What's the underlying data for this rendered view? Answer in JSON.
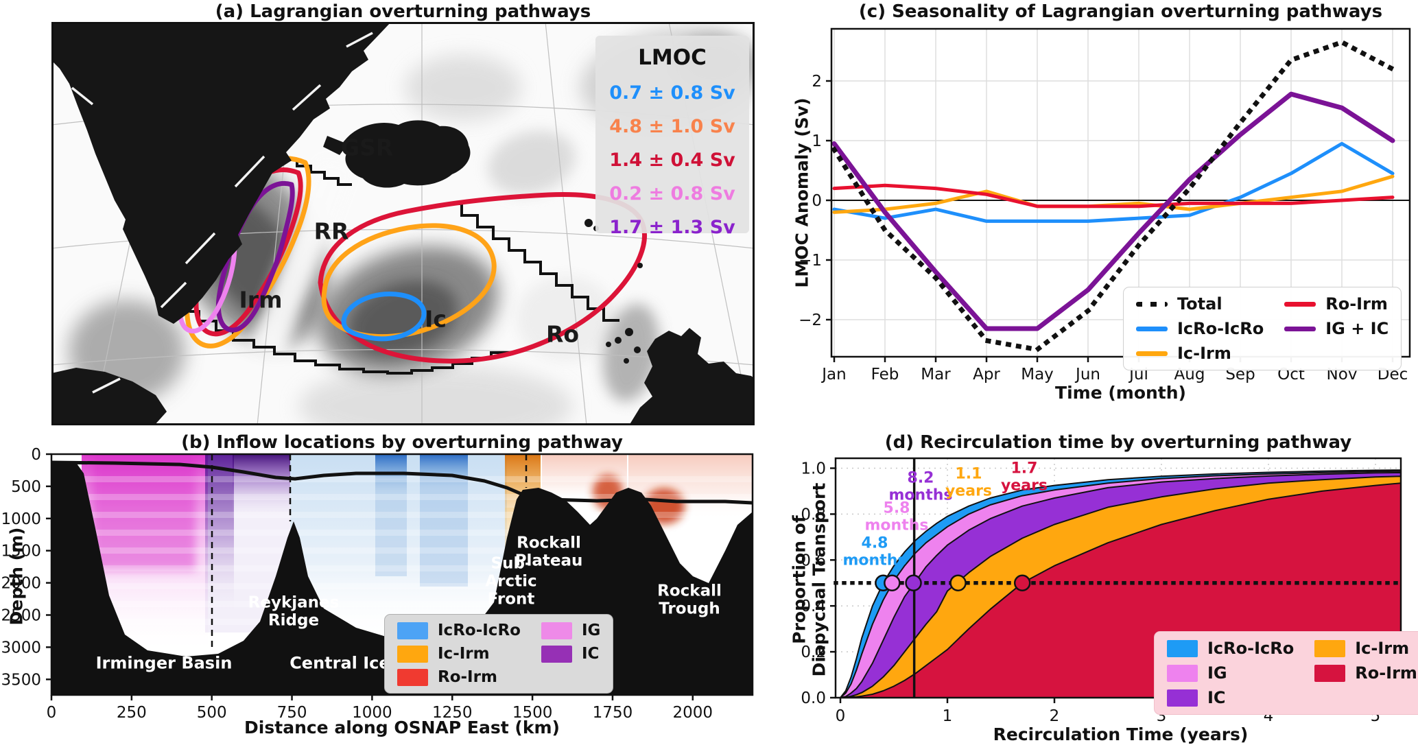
{
  "panel_a": {
    "title": "(a) Lagrangian overturning pathways",
    "legend": {
      "title": "LMOC",
      "entries": [
        {
          "pathway": "IcRo-IcRo",
          "label": "0.7 ± 0.8 Sv",
          "color": "#1e8ffb"
        },
        {
          "pathway": "Ic-Irm",
          "label": "4.8 ± 1.0 Sv",
          "color": "#f8824c"
        },
        {
          "pathway": "Ro-Irm",
          "label": "1.4 ± 0.4 Sv",
          "color": "#cf1137"
        },
        {
          "pathway": "IG",
          "label": "0.2 ± 0.8 Sv",
          "color": "#ee7ce0"
        },
        {
          "pathway": "IC",
          "label": "1.7 ± 1.3 Sv",
          "color": "#8a22cc"
        }
      ]
    },
    "map_labels": [
      {
        "text": "GSR"
      },
      {
        "text": "RR"
      },
      {
        "text": "Irm"
      },
      {
        "text": "Ic"
      },
      {
        "text": "Ro"
      }
    ]
  },
  "chart_data": [
    {
      "id": "b",
      "type": "heatmap",
      "title": "(b) Inflow locations by overturning pathway",
      "xlabel": "Distance along OSNAP East (km)",
      "ylabel": "Depth (m)",
      "xlim": [
        0,
        2187
      ],
      "ylim": [
        3740,
        0
      ],
      "x_ticks": [
        0,
        250,
        500,
        750,
        1000,
        1250,
        1500,
        1750,
        2000
      ],
      "y_ticks": [
        0,
        500,
        1000,
        1500,
        2000,
        2500,
        3000,
        3500
      ],
      "region_labels": [
        {
          "text": "Irminger Basin"
        },
        {
          "text": "Central Iceland Basin"
        },
        {
          "text": "Reykjanes\nRidge"
        },
        {
          "text": "Sub-\nArctic\nFront"
        },
        {
          "text": "Rockall\nPlateau"
        },
        {
          "text": "Rockall\nTrough"
        }
      ],
      "legend": [
        {
          "label": "IcRo-IcRo",
          "color": "#4da3f5"
        },
        {
          "label": "Ic-Irm",
          "color": "#ffa70f"
        },
        {
          "label": "Ro-Irm",
          "color": "#f03a30"
        },
        {
          "label": "IG",
          "color": "#ee8ae8"
        },
        {
          "label": "IC",
          "color": "#9630b5"
        }
      ],
      "notes": "Inflow concentration along OSNAP East by pathway (colored columns), black bathymetry, thick black overturning-isopycnal depth line, dashed separators near 500, 745 and 1480 km"
    },
    {
      "id": "c",
      "type": "line",
      "title": "(c) Seasonality of Lagrangian overturning pathways",
      "xlabel": "Time (month)",
      "ylabel": "LMOC Anomaly (Sv)",
      "categories": [
        "Jan",
        "Feb",
        "Mar",
        "Apr",
        "May",
        "Jun",
        "Jul",
        "Aug",
        "Sep",
        "Oct",
        "Nov",
        "Dec"
      ],
      "ylim": [
        -2.62,
        2.87
      ],
      "y_ticks": [
        {
          "v": -2,
          "label": "−2"
        },
        {
          "v": -1,
          "label": "−1"
        },
        {
          "v": 0,
          "label": "0"
        },
        {
          "v": 1,
          "label": "1"
        },
        {
          "v": 2,
          "label": "2"
        }
      ],
      "y_grid": [
        -2,
        -1,
        1,
        2
      ],
      "series": [
        {
          "name": "IcRo-IcRo",
          "color": "#1e8ffb",
          "width": 5,
          "values": [
            -0.15,
            -0.3,
            -0.15,
            -0.35,
            -0.35,
            -0.35,
            -0.3,
            -0.25,
            0.05,
            0.45,
            0.95,
            0.45
          ]
        },
        {
          "name": "Ic-Irm",
          "color": "#ffa70f",
          "width": 5,
          "values": [
            -0.2,
            -0.15,
            -0.05,
            0.15,
            -0.1,
            -0.1,
            -0.05,
            -0.15,
            -0.05,
            0.05,
            0.15,
            0.4
          ]
        },
        {
          "name": "Ro-Irm",
          "color": "#e8112f",
          "width": 5,
          "values": [
            0.2,
            0.25,
            0.2,
            0.1,
            -0.1,
            -0.1,
            -0.1,
            -0.05,
            -0.05,
            -0.05,
            0.0,
            0.05
          ]
        },
        {
          "name": "IG + IC",
          "color": "#7b1396",
          "width": 7,
          "values": [
            0.95,
            -0.2,
            -1.2,
            -2.15,
            -2.15,
            -1.5,
            -0.55,
            0.35,
            1.1,
            1.78,
            1.55,
            1.0
          ]
        },
        {
          "name": "Total",
          "color": "#111111",
          "width": 7,
          "dash": "1 14",
          "values": [
            0.85,
            -0.5,
            -1.3,
            -2.35,
            -2.5,
            -1.85,
            -0.75,
            0.2,
            1.3,
            2.35,
            2.65,
            2.2
          ]
        }
      ],
      "legend": [
        {
          "label": "Total",
          "color": "#111111",
          "dotted": true
        },
        {
          "label": "IcRo-IcRo",
          "color": "#1e8ffb"
        },
        {
          "label": "Ic-Irm",
          "color": "#ffa70f"
        },
        {
          "label": "Ro-Irm",
          "color": "#e8112f"
        },
        {
          "label": "IG + IC",
          "color": "#7b1396"
        }
      ]
    },
    {
      "id": "d",
      "type": "area",
      "title": "(d) Recirculation time by overturning pathway",
      "xlabel": "Recirculation Time (years)",
      "ylabel": "Proportion of\nDiapycnal Transport",
      "xlim": [
        0,
        5.24
      ],
      "ylim": [
        0,
        1.043
      ],
      "x_ticks": [
        0,
        1,
        2,
        3,
        4,
        5
      ],
      "y_ticks": [
        {
          "v": 0,
          "label": "0.0"
        },
        {
          "v": 0.2,
          "label": "0.2"
        },
        {
          "v": 0.4,
          "label": "0.4"
        },
        {
          "v": 0.6,
          "label": "0.6"
        },
        {
          "v": 0.8,
          "label": "0.8"
        },
        {
          "v": 1,
          "label": "1.0"
        }
      ],
      "median_line": 0.5,
      "vline_years": 0.69,
      "x": [
        0,
        0.05,
        0.1,
        0.15,
        0.2,
        0.3,
        0.4,
        0.5,
        0.6,
        0.7,
        0.8,
        0.9,
        1.0,
        1.2,
        1.4,
        1.7,
        2.0,
        2.5,
        3.0,
        3.5,
        4.0,
        4.5,
        5.0,
        5.24
      ],
      "series": [
        {
          "name": "IcRo-IcRo",
          "color": "#1e9bf5",
          "median_years": 0.4,
          "median_label": "4.8\nmonths",
          "values": [
            0,
            0.03,
            0.09,
            0.17,
            0.26,
            0.4,
            0.5,
            0.575,
            0.635,
            0.685,
            0.725,
            0.76,
            0.79,
            0.835,
            0.87,
            0.905,
            0.925,
            0.95,
            0.965,
            0.975,
            0.982,
            0.987,
            0.991,
            0.992
          ]
        },
        {
          "name": "IG",
          "color": "#ee82ee",
          "median_years": 0.483,
          "median_label": "5.8\nmonths",
          "values": [
            0,
            0.02,
            0.06,
            0.12,
            0.19,
            0.32,
            0.425,
            0.51,
            0.575,
            0.63,
            0.675,
            0.71,
            0.745,
            0.8,
            0.84,
            0.88,
            0.905,
            0.935,
            0.955,
            0.967,
            0.975,
            0.981,
            0.986,
            0.987
          ]
        },
        {
          "name": "IC",
          "color": "#9630d5",
          "median_years": 0.683,
          "median_label": "8.2\nmonths",
          "values": [
            0,
            0.005,
            0.02,
            0.04,
            0.07,
            0.15,
            0.25,
            0.35,
            0.44,
            0.505,
            0.57,
            0.62,
            0.665,
            0.73,
            0.78,
            0.835,
            0.87,
            0.915,
            0.94,
            0.955,
            0.966,
            0.974,
            0.98,
            0.981
          ]
        },
        {
          "name": "Ic-Irm",
          "color": "#ffa70f",
          "median_years": 1.1,
          "median_label": "1.1\nyears",
          "values": [
            0,
            0.002,
            0.006,
            0.013,
            0.022,
            0.05,
            0.09,
            0.14,
            0.2,
            0.26,
            0.32,
            0.375,
            0.465,
            0.545,
            0.615,
            0.695,
            0.755,
            0.83,
            0.875,
            0.91,
            0.935,
            0.95,
            0.962,
            0.965
          ]
        },
        {
          "name": "Ro-Irm",
          "color": "#d6133f",
          "median_years": 1.7,
          "median_label": "1.7\nyears",
          "values": [
            0,
            0.001,
            0.002,
            0.004,
            0.007,
            0.015,
            0.03,
            0.05,
            0.075,
            0.105,
            0.14,
            0.175,
            0.21,
            0.3,
            0.385,
            0.5,
            0.575,
            0.675,
            0.755,
            0.815,
            0.865,
            0.9,
            0.925,
            0.935
          ]
        }
      ],
      "legend": [
        {
          "label": "IcRo-IcRo",
          "color": "#1e9bf5"
        },
        {
          "label": "IG",
          "color": "#ee82ee"
        },
        {
          "label": "IC",
          "color": "#9630d5"
        },
        {
          "label": "Ic-Irm",
          "color": "#ffa70f"
        },
        {
          "label": "Ro-Irm",
          "color": "#d6133f"
        }
      ]
    }
  ]
}
